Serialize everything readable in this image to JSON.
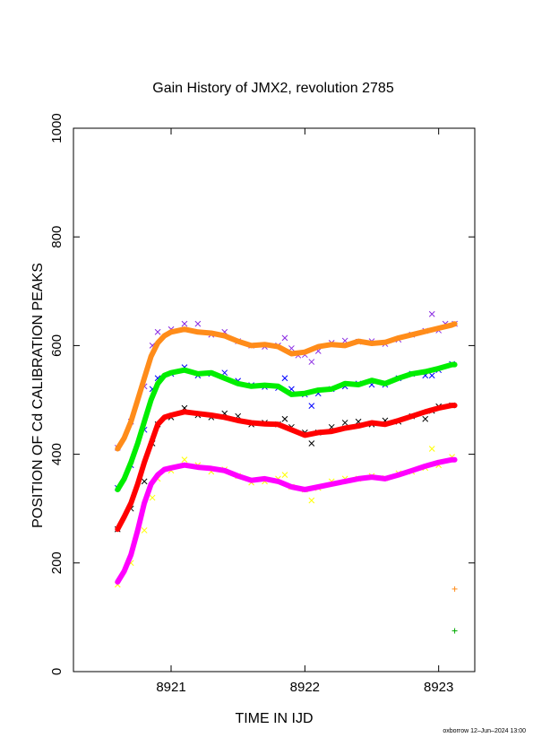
{
  "chart_data": {
    "type": "scatter",
    "title": "Gain History of JMX2, revolution 2785",
    "xlabel": "TIME IN IJD",
    "ylabel": "POSITION OF Cd CALIBRATION PEAKS",
    "xlim": [
      8920.27,
      8923.27
    ],
    "ylim": [
      0,
      1000
    ],
    "xticks": [
      8921,
      8922,
      8923
    ],
    "yticks": [
      0,
      200,
      400,
      600,
      800,
      1000
    ],
    "grid": false,
    "footer": "oxborrow 12–Jun–2024 13:00",
    "series": [
      {
        "marker": "x",
        "color": "#8a2be2",
        "x": [
          8920.6,
          8920.7,
          8920.8,
          8920.86,
          8920.9,
          8921.0,
          8921.1,
          8921.2,
          8921.3,
          8921.4,
          8921.5,
          8921.6,
          8921.7,
          8921.8,
          8921.85,
          8921.9,
          8921.95,
          8922.0,
          8922.05,
          8922.1,
          8922.2,
          8922.3,
          8922.4,
          8922.5,
          8922.6,
          8922.7,
          8922.8,
          8922.9,
          8922.95,
          8923.0,
          8923.05,
          8923.12
        ],
        "y": [
          412,
          460,
          525,
          600,
          625,
          630,
          640,
          640,
          620,
          625,
          608,
          600,
          598,
          600,
          614,
          595,
          582,
          583,
          570,
          590,
          605,
          609,
          607,
          608,
          603,
          611,
          620,
          627,
          658,
          628,
          640,
          640
        ]
      },
      {
        "marker": "line",
        "color": "#ff8c1a",
        "x": [
          8920.6,
          8920.65,
          8920.7,
          8920.75,
          8920.8,
          8920.85,
          8920.9,
          8920.95,
          8921.0,
          8921.1,
          8921.2,
          8921.3,
          8921.4,
          8921.5,
          8921.6,
          8921.7,
          8921.8,
          8921.9,
          8922.0,
          8922.1,
          8922.2,
          8922.3,
          8922.4,
          8922.5,
          8922.6,
          8922.7,
          8922.8,
          8922.9,
          8923.0,
          8923.1,
          8923.12
        ],
        "y": [
          410,
          430,
          460,
          500,
          540,
          580,
          605,
          618,
          625,
          630,
          625,
          623,
          618,
          608,
          600,
          602,
          598,
          585,
          588,
          598,
          602,
          600,
          608,
          604,
          606,
          614,
          620,
          626,
          632,
          638,
          640
        ]
      },
      {
        "marker": "x",
        "color": "#0000ff",
        "x": [
          8920.6,
          8920.7,
          8920.8,
          8920.86,
          8920.9,
          8921.0,
          8921.1,
          8921.2,
          8921.3,
          8921.4,
          8921.5,
          8921.6,
          8921.7,
          8921.8,
          8921.85,
          8921.9,
          8922.0,
          8922.05,
          8922.1,
          8922.2,
          8922.3,
          8922.4,
          8922.5,
          8922.6,
          8922.7,
          8922.8,
          8922.9,
          8922.95,
          8923.0,
          8923.1
        ],
        "y": [
          338,
          380,
          445,
          520,
          540,
          548,
          560,
          545,
          548,
          550,
          535,
          527,
          524,
          522,
          540,
          520,
          510,
          489,
          512,
          520,
          525,
          530,
          528,
          528,
          540,
          548,
          545,
          545,
          555,
          566
        ]
      },
      {
        "marker": "line",
        "color": "#00ee00",
        "x": [
          8920.6,
          8920.65,
          8920.7,
          8920.75,
          8920.8,
          8920.85,
          8920.9,
          8920.95,
          8921.0,
          8921.1,
          8921.2,
          8921.3,
          8921.4,
          8921.5,
          8921.6,
          8921.7,
          8921.8,
          8921.9,
          8922.0,
          8922.1,
          8922.2,
          8922.3,
          8922.4,
          8922.5,
          8922.6,
          8922.7,
          8922.8,
          8922.9,
          8923.0,
          8923.1,
          8923.12
        ],
        "y": [
          335,
          355,
          385,
          420,
          460,
          500,
          530,
          545,
          550,
          555,
          548,
          550,
          540,
          530,
          525,
          527,
          525,
          510,
          512,
          518,
          520,
          530,
          528,
          536,
          530,
          540,
          548,
          552,
          558,
          565,
          565
        ]
      },
      {
        "marker": "x",
        "color": "#000000",
        "x": [
          8920.6,
          8920.7,
          8920.8,
          8920.86,
          8920.9,
          8921.0,
          8921.1,
          8921.2,
          8921.3,
          8921.4,
          8921.5,
          8921.6,
          8921.7,
          8921.8,
          8921.85,
          8921.9,
          8922.0,
          8922.05,
          8922.1,
          8922.2,
          8922.3,
          8922.4,
          8922.5,
          8922.6,
          8922.7,
          8922.8,
          8922.9,
          8922.95,
          8923.0,
          8923.1
        ],
        "y": [
          262,
          300,
          350,
          420,
          455,
          468,
          485,
          472,
          468,
          475,
          470,
          455,
          458,
          455,
          465,
          450,
          440,
          420,
          440,
          450,
          458,
          460,
          455,
          462,
          460,
          470,
          465,
          480,
          488,
          490
        ]
      },
      {
        "marker": "line",
        "color": "#ff0000",
        "x": [
          8920.6,
          8920.65,
          8920.7,
          8920.75,
          8920.8,
          8920.85,
          8920.9,
          8920.95,
          8921.0,
          8921.1,
          8921.2,
          8921.3,
          8921.4,
          8921.5,
          8921.6,
          8921.7,
          8921.8,
          8921.9,
          8922.0,
          8922.1,
          8922.2,
          8922.3,
          8922.4,
          8922.5,
          8922.6,
          8922.7,
          8922.8,
          8922.9,
          8923.0,
          8923.1,
          8923.12
        ],
        "y": [
          262,
          285,
          310,
          345,
          385,
          420,
          455,
          468,
          472,
          478,
          475,
          472,
          468,
          462,
          458,
          456,
          455,
          445,
          435,
          440,
          442,
          448,
          452,
          458,
          455,
          462,
          470,
          478,
          485,
          490,
          490
        ]
      },
      {
        "marker": "x",
        "color": "#ffff00",
        "x": [
          8920.6,
          8920.7,
          8920.8,
          8920.86,
          8920.9,
          8921.0,
          8921.1,
          8921.2,
          8921.3,
          8921.4,
          8921.5,
          8921.6,
          8921.7,
          8921.8,
          8921.85,
          8921.9,
          8922.0,
          8922.05,
          8922.1,
          8922.2,
          8922.3,
          8922.4,
          8922.5,
          8922.6,
          8922.7,
          8922.8,
          8922.9,
          8922.95,
          8923.0,
          8923.1
        ],
        "y": [
          160,
          200,
          260,
          320,
          355,
          370,
          390,
          380,
          368,
          372,
          360,
          348,
          350,
          355,
          362,
          340,
          335,
          315,
          338,
          350,
          355,
          355,
          360,
          356,
          365,
          368,
          375,
          410,
          380,
          395
        ]
      },
      {
        "marker": "line",
        "color": "#ff00ff",
        "x": [
          8920.6,
          8920.65,
          8920.7,
          8920.75,
          8920.8,
          8920.85,
          8920.9,
          8920.95,
          8921.0,
          8921.1,
          8921.2,
          8921.3,
          8921.4,
          8921.5,
          8921.6,
          8921.7,
          8921.8,
          8921.9,
          8922.0,
          8922.1,
          8922.2,
          8922.3,
          8922.4,
          8922.5,
          8922.6,
          8922.7,
          8922.8,
          8922.9,
          8923.0,
          8923.1,
          8923.12
        ],
        "y": [
          165,
          185,
          215,
          260,
          310,
          345,
          362,
          372,
          375,
          380,
          376,
          374,
          370,
          360,
          352,
          355,
          350,
          340,
          335,
          340,
          345,
          350,
          355,
          358,
          355,
          362,
          370,
          378,
          385,
          390,
          390
        ]
      },
      {
        "marker": "+",
        "color": "#ff8c1a",
        "x": [
          8923.12
        ],
        "y": [
          152
        ]
      },
      {
        "marker": "+",
        "color": "#00aa00",
        "x": [
          8923.12
        ],
        "y": [
          75
        ]
      }
    ]
  }
}
